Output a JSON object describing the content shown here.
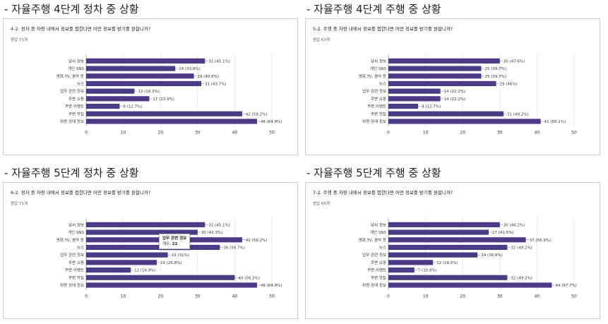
{
  "sections": [
    {
      "heading": "- 자율주행 4단계 정차 중 상황",
      "question": "4-2. 정차 중 차량 내에서 정보를 접한다면 어떤 정보를 받기를 원합니까?",
      "responses": "응답 71개",
      "chart_data": {
        "type": "bar",
        "orientation": "horizontal",
        "categories": [
          "날씨 정보",
          "개인 SNS",
          "영화,TV, 음악 등",
          "뉴스",
          "업무 관련 정보",
          "주변 쇼핑",
          "주변 이벤트",
          "주변 맛집",
          "차량 상태 정보"
        ],
        "values": [
          32,
          24,
          29,
          31,
          13,
          17,
          9,
          42,
          46
        ],
        "labels": [
          "32 (45.1%)",
          "24 (33.8%)",
          "29 (40.8%)",
          "31 (43.7%)",
          "13 (18.3%)",
          "17 (23.9%)",
          "9 (12.7%)",
          "42 (59.2%)",
          "46 (64.8%)"
        ],
        "xticks": [
          "0",
          "10",
          "20",
          "30",
          "40",
          "50"
        ],
        "xlim": [
          0,
          50
        ],
        "grid": true
      }
    },
    {
      "heading": "- 자율주행 4단계 주행 중 상황",
      "question": "5-2. 주행 중 차량 내에서 정보를 접한다면 어떤 정보를 받기를 원합니까?",
      "responses": "응답 63개",
      "chart_data": {
        "type": "bar",
        "orientation": "horizontal",
        "categories": [
          "날씨 정보",
          "개인 SNS",
          "영화,TV, 음악 등",
          "뉴스",
          "업무 관련 정보",
          "주변 쇼핑",
          "주변 이벤트",
          "주변 맛집",
          "차량 상태 정보"
        ],
        "values": [
          30,
          25,
          25,
          29,
          14,
          14,
          8,
          31,
          41
        ],
        "labels": [
          "30 (47.6%)",
          "25 (39.7%)",
          "25 (39.7%)",
          "29 (46%)",
          "14 (22.2%)",
          "14 (22.2%)",
          "8 (12.7%)",
          "31 (49.2%)",
          "41 (65.1%)"
        ],
        "xticks": [
          "0",
          "10",
          "20",
          "30",
          "40",
          "50"
        ],
        "xlim": [
          0,
          50
        ],
        "grid": true
      }
    },
    {
      "heading": "- 자율주행 5단계 정차 중 상황",
      "question": "6-2. 정차 중 차량 내에서 정보를 접한다면 어떤 정보를 받기를 원합니까?",
      "responses": "응답 71개",
      "tooltip": {
        "title": "업무 관련 정보",
        "count_label": "개수:",
        "count": "22"
      },
      "chart_data": {
        "type": "bar",
        "orientation": "horizontal",
        "categories": [
          "날씨 정보",
          "개인 SNS",
          "영화,TV, 음악 등",
          "뉴스",
          "업무 관련 정보",
          "주변 쇼핑",
          "주변 이벤트",
          "주변 맛집",
          "차량 상태 정보"
        ],
        "values": [
          32,
          30,
          42,
          36,
          22,
          19,
          12,
          40,
          46
        ],
        "labels": [
          "32 (45.1%)",
          "30 (42.3%)",
          "42 (59.2%)",
          "36 (50.7%)",
          "22 (31%)",
          "19 (26.8%)",
          "12 (16.9%)",
          "40 (56.3%)",
          "46 (64.8%)"
        ],
        "xticks": [
          "0",
          "10",
          "20",
          "30",
          "40",
          "50"
        ],
        "xlim": [
          0,
          50
        ],
        "grid": true
      }
    },
    {
      "heading": "- 자율주행 5단계 주행 중 상황",
      "question": "7-2. 주행 중 차량 내에서 정보를 접한다면 어떤 정보를 받기를 원합니까?",
      "responses": "응답 65개",
      "chart_data": {
        "type": "bar",
        "orientation": "horizontal",
        "categories": [
          "날씨 정보",
          "개인 SNS",
          "영화,TV, 음악 등",
          "뉴스",
          "업무 관련 정보",
          "주변 쇼핑",
          "주변 이벤트",
          "주변 맛집",
          "차량 상태 정보"
        ],
        "values": [
          30,
          27,
          37,
          32,
          24,
          12,
          7,
          32,
          44
        ],
        "labels": [
          "30 (46.2%)",
          "27 (41.5%)",
          "37 (56.9%)",
          "32 (49.2%)",
          "24 (36.9%)",
          "12 (18.5%)",
          "7 (10.8%)",
          "32 (49.2%)",
          "44 (67.7%)"
        ],
        "xticks": [
          "0",
          "10",
          "20",
          "30",
          "40",
          "50"
        ],
        "xlim": [
          0,
          50
        ],
        "grid": true
      }
    }
  ],
  "colors": {
    "bar": "#4b3a86",
    "grid": "#e3e3e3",
    "axis": "#9a9a9a",
    "text": "#333333"
  }
}
